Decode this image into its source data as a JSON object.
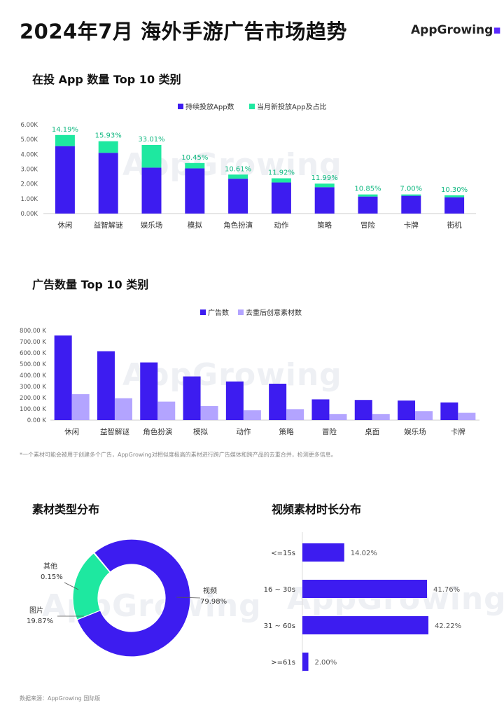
{
  "header": {
    "title": "2024年7月 海外手游广告市场趋势",
    "logo": "AppGrowing"
  },
  "colors": {
    "primary": "#3d1cf0",
    "accent": "#1ee8a0",
    "secondary": "#b3a4ff"
  },
  "watermark": "AppGrowing",
  "chart_data": [
    {
      "id": "app-top10",
      "type": "bar",
      "title": "在投 App 数量 Top 10 类别",
      "categories": [
        "休闲",
        "益智解谜",
        "娱乐场",
        "模拟",
        "角色扮演",
        "动作",
        "策略",
        "冒险",
        "卡牌",
        "街机"
      ],
      "series": [
        {
          "name": "持续投放App数",
          "values": [
            4.55,
            4.1,
            3.1,
            3.05,
            2.35,
            2.1,
            1.78,
            1.15,
            1.2,
            1.1
          ]
        },
        {
          "name": "当月新投放App及占比",
          "values": [
            0.75,
            0.78,
            1.53,
            0.36,
            0.28,
            0.28,
            0.24,
            0.14,
            0.09,
            0.13
          ]
        }
      ],
      "data_labels": [
        "14.19%",
        "15.93%",
        "33.01%",
        "10.45%",
        "10.61%",
        "11.92%",
        "11.99%",
        "10.85%",
        "7.00%",
        "10.30%"
      ],
      "yticks": [
        "0.00K",
        "1.00K",
        "2.00K",
        "3.00K",
        "4.00K",
        "5.00K",
        "6.00K"
      ],
      "ylim": [
        0,
        6
      ],
      "legend": "top"
    },
    {
      "id": "ad-top10",
      "type": "bar",
      "title": "广告数量 Top 10 类别",
      "categories": [
        "休闲",
        "益智解谜",
        "角色扮演",
        "模拟",
        "动作",
        "策略",
        "冒险",
        "桌面",
        "娱乐场",
        "卡牌"
      ],
      "series": [
        {
          "name": "广告数",
          "values": [
            755,
            615,
            515,
            390,
            345,
            325,
            185,
            180,
            175,
            158
          ]
        },
        {
          "name": "去重后创意素材数",
          "values": [
            232,
            195,
            165,
            125,
            88,
            98,
            55,
            55,
            80,
            65
          ]
        }
      ],
      "yticks": [
        "0.00 K",
        "100.00 K",
        "200.00 K",
        "300.00 K",
        "400.00 K",
        "500.00 K",
        "600.00 K",
        "700.00 K",
        "800.00 K"
      ],
      "ylim": [
        0,
        800
      ],
      "legend": "top",
      "footnote": "*一个素材可能会被用于创建多个广告，AppGrowing对相似度极高的素材进行跨广告媒体和跨产品的去重合并，检测更多信息。"
    },
    {
      "id": "material-type",
      "type": "pie",
      "title": "素材类型分布",
      "slices": [
        {
          "name": "视频",
          "value": 79.98,
          "label": "79.98%"
        },
        {
          "name": "图片",
          "value": 19.87,
          "label": "19.87%"
        },
        {
          "name": "其他",
          "value": 0.15,
          "label": "0.15%"
        }
      ]
    },
    {
      "id": "video-duration",
      "type": "bar",
      "orientation": "horizontal",
      "title": "视频素材时长分布",
      "categories": [
        "<=15s",
        "16 ~ 30s",
        "31 ~ 60s",
        ">=61s"
      ],
      "values": [
        14.02,
        41.76,
        42.22,
        2.0
      ],
      "data_labels": [
        "14.02%",
        "41.76%",
        "42.22%",
        "2.00%"
      ]
    }
  ],
  "source": "数据来源：AppGrowing 国际版"
}
